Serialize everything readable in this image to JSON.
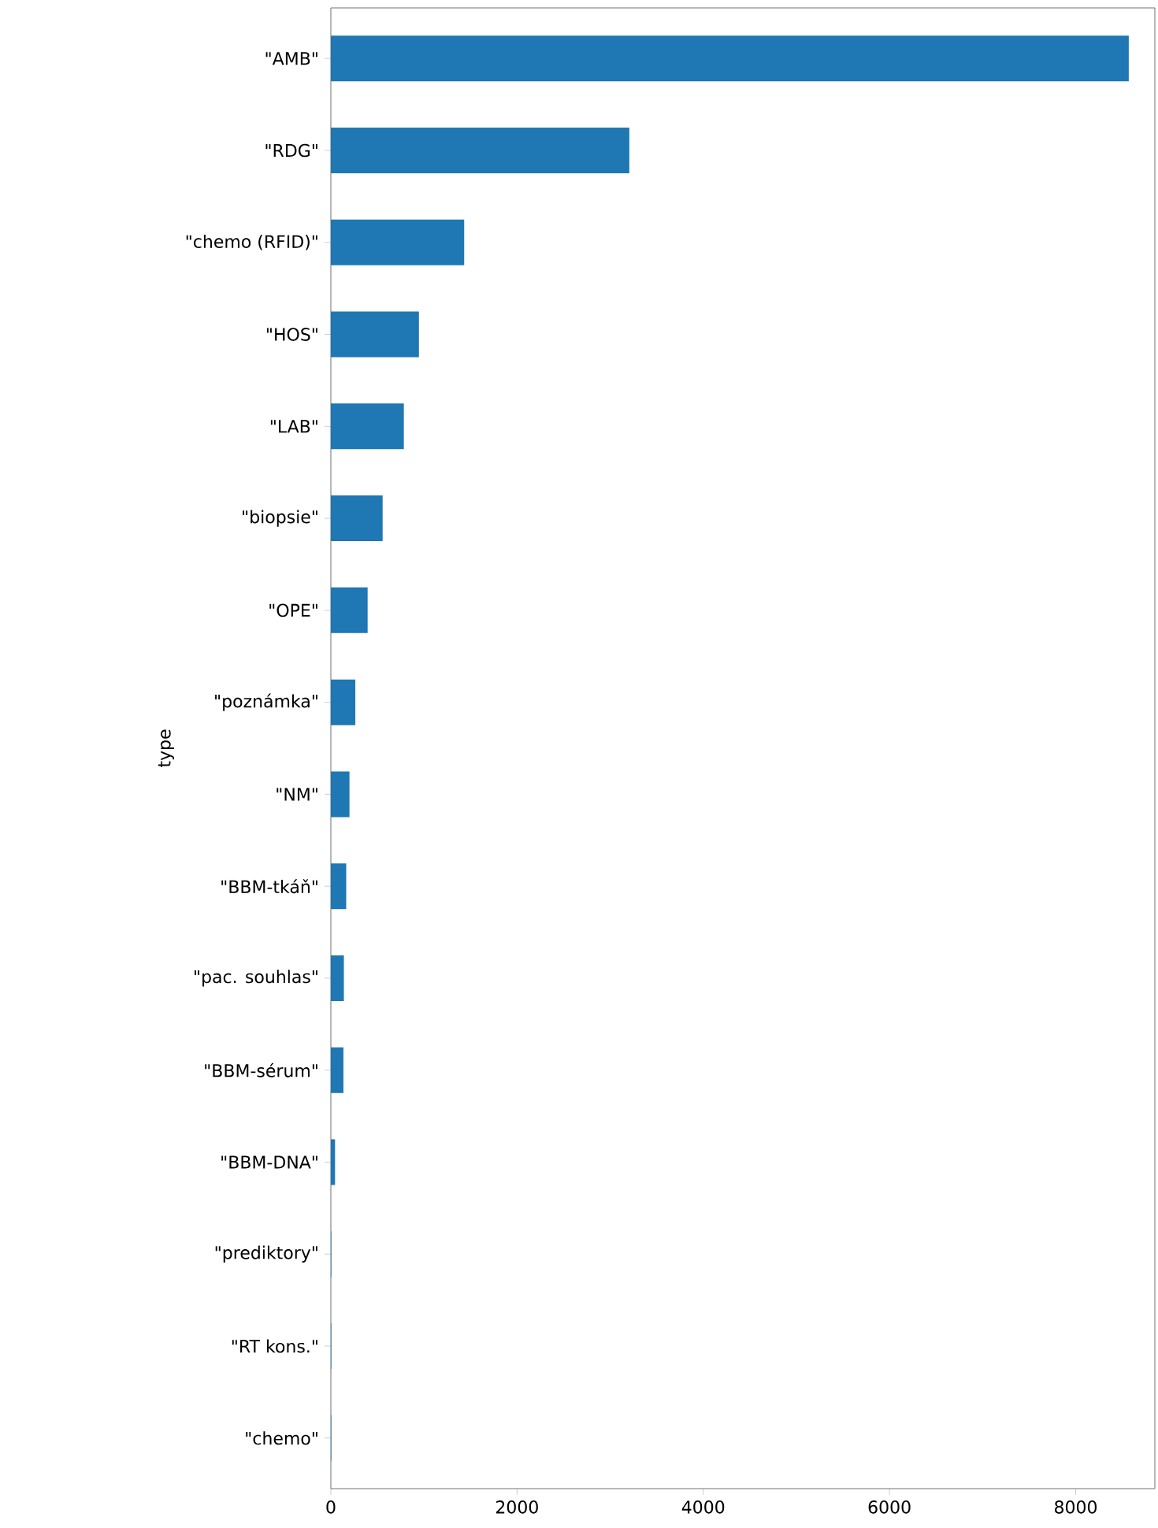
{
  "chart_data": {
    "type": "bar",
    "orientation": "horizontal",
    "ylabel": "type",
    "categories": [
      "\"AMB\"",
      "\"RDG\"",
      "\"chemo (RFID)\"",
      "\"HOS\"",
      "\"LAB\"",
      "\"biopsie\"",
      "\"OPE\"",
      "\"poznámka\"",
      "\"NM\"",
      "\"BBM-tkáň\"",
      "\"pac. souhlas\"",
      "\"BBM-sérum\"",
      "\"BBM-DNA\"",
      "\"prediktory\"",
      "\"RT kons.\"",
      "\"chemo\""
    ],
    "values": [
      8570,
      3206,
      1432,
      946,
      784,
      556,
      395,
      263,
      200,
      165,
      140,
      135,
      45,
      5,
      5,
      5
    ],
    "color": "#1f77b4",
    "xlim": [
      0,
      8850
    ],
    "xticks": [
      0,
      2000,
      4000,
      6000,
      8000
    ],
    "grid": false
  }
}
